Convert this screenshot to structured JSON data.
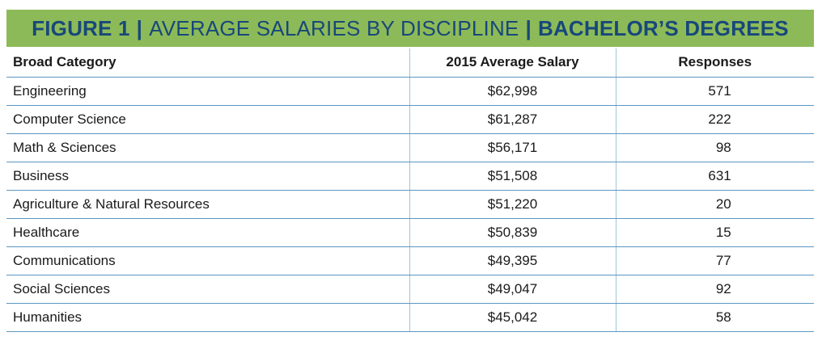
{
  "figure": {
    "label": "FIGURE 1",
    "separator": "|",
    "title": "AVERAGE SALARIES BY DISCIPLINE",
    "subtitle": "BACHELOR’S DEGREES"
  },
  "table": {
    "headers": [
      "Broad Category",
      "2015 Average Salary",
      "Responses"
    ],
    "rows": [
      {
        "category": "Engineering",
        "salary": "$62,998",
        "responses": "571"
      },
      {
        "category": "Computer Science",
        "salary": "$61,287",
        "responses": "222"
      },
      {
        "category": "Math & Sciences",
        "salary": "$56,171",
        "responses": "98"
      },
      {
        "category": "Business",
        "salary": "$51,508",
        "responses": "631"
      },
      {
        "category": "Agriculture & Natural Resources",
        "salary": "$51,220",
        "responses": "20"
      },
      {
        "category": "Healthcare",
        "salary": "$50,839",
        "responses": "15"
      },
      {
        "category": "Communications",
        "salary": "$49,395",
        "responses": "77"
      },
      {
        "category": "Social Sciences",
        "salary": "$49,047",
        "responses": "92"
      },
      {
        "category": "Humanities",
        "salary": "$45,042",
        "responses": "58"
      }
    ]
  },
  "colors": {
    "banner_bg": "#8dba58",
    "banner_text": "#17487a",
    "rule": "#5b97c2"
  }
}
